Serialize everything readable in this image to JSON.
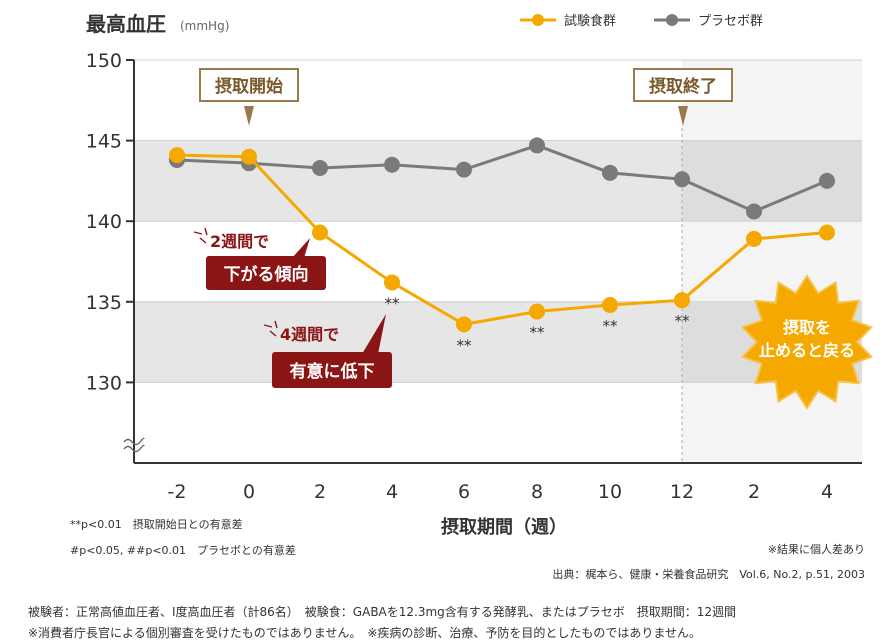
{
  "chart_data": {
    "type": "line",
    "title": "最高血圧",
    "unit": "(mmHg)",
    "xlabel": "摂取期間（週）",
    "categories": [
      "-2",
      "0",
      "2",
      "4",
      "6",
      "8",
      "10",
      "12",
      "2",
      "4"
    ],
    "ylim": [
      125,
      150
    ],
    "yticks": [
      130,
      135,
      140,
      145,
      150
    ],
    "series": [
      {
        "name": "試験食群",
        "color": "#f5a800",
        "values": [
          144.1,
          144.0,
          139.3,
          136.2,
          133.6,
          134.4,
          134.8,
          135.1,
          138.9,
          139.3
        ],
        "significance": [
          "",
          "",
          "",
          "**",
          "**",
          "**",
          "**",
          "**",
          "",
          ""
        ]
      },
      {
        "name": "プラセボ群",
        "color": "#7a7a7a",
        "values": [
          143.8,
          143.6,
          143.3,
          143.5,
          143.2,
          144.7,
          143.0,
          142.6,
          140.6,
          142.5
        ]
      }
    ],
    "annotations": {
      "start": "摂取開始",
      "end": "摂取終了",
      "two_weeks_line1": "2週間で",
      "two_weeks_line2": "下がる傾向",
      "four_weeks_line1": "4週間で",
      "four_weeks_line2": "有意に低下",
      "burst_line1": "摂取を",
      "burst_line2": "止めると戻る"
    }
  },
  "legend_note": {
    "p001": "**p<0.01　摂取開始日との有意差",
    "p005": "#p<0.05, ##p<0.01　プラセボとの有意差"
  },
  "individual_note": "※結果に個人差あり",
  "source": "出典：梶本ら、健康・栄養食品研究　Vol.6, No.2, p.51, 2003",
  "footer": {
    "line1": "被験者：正常高値血圧者、I度高血圧者（計86名）　被験食：GABAを12.3mg含有する発酵乳、またはプラセボ　摂取期間：12週間",
    "line2": "※消費者庁長官による個別審査を受けたものではありません。　※疾病の診断、治療、予防を目的としたものではありません。"
  },
  "colors": {
    "accent": "#f5a800",
    "placebo": "#7a7a7a",
    "label_red": "#8b1414",
    "callout_brown": "#9a7a4a",
    "band": "#e6e6e6"
  }
}
